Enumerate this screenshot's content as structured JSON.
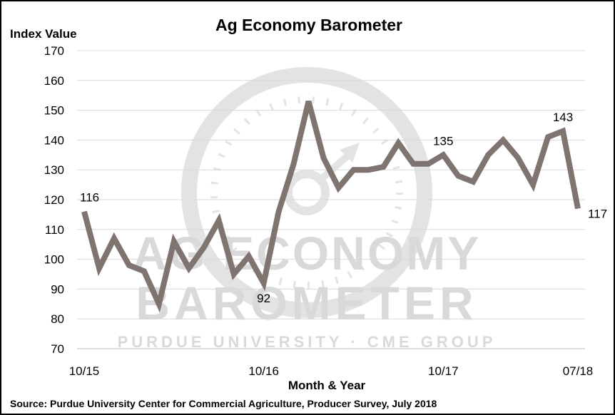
{
  "chart_data": {
    "type": "line",
    "title": "Ag Economy Barometer",
    "ylabel": "Index Value",
    "xlabel": "Month & Year",
    "source": "Source: Purdue University Center for Commercial Agriculture, Producer Survey, July 2018",
    "ylim": [
      70,
      170
    ],
    "yticks": [
      70,
      80,
      90,
      100,
      110,
      120,
      130,
      140,
      150,
      160,
      170
    ],
    "xtick_labels": [
      {
        "index": 0,
        "label": "10/15"
      },
      {
        "index": 12,
        "label": "10/16"
      },
      {
        "index": 24,
        "label": "10/17"
      },
      {
        "index": 33,
        "label": "07/18"
      }
    ],
    "grid": true,
    "line_color": "#7f7470",
    "series": [
      {
        "values": [
          116,
          97,
          107,
          98,
          96,
          85,
          106,
          97,
          104,
          113,
          95,
          101,
          92,
          116,
          132,
          153,
          134,
          124,
          130,
          130,
          131,
          139,
          132,
          132,
          135,
          128,
          126,
          135,
          140,
          134,
          125,
          141,
          143,
          117
        ]
      }
    ],
    "annotations": [
      {
        "index": 0,
        "text": "116"
      },
      {
        "index": 12,
        "text": "92"
      },
      {
        "index": 24,
        "text": "135"
      },
      {
        "index": 32,
        "text": "143"
      },
      {
        "index": 33,
        "text": "117"
      }
    ],
    "watermark": {
      "line1": "AG ECONOMY",
      "line2": "BAROMETER",
      "line3": "PURDUE UNIVERSITY · CME GROUP"
    }
  }
}
